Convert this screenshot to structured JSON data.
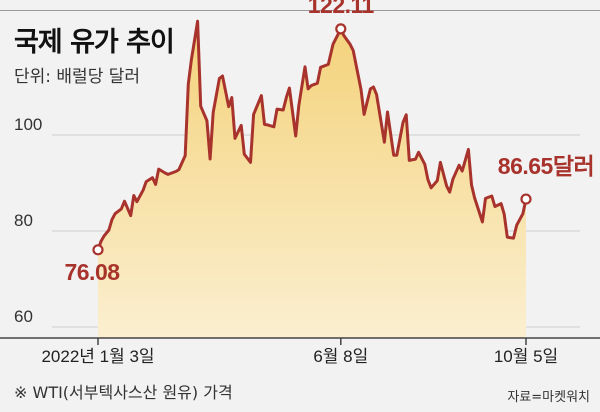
{
  "chart_data": {
    "type": "area",
    "title": "국제 유가 추이",
    "unit_label": "단위: 배럴당 달러",
    "ylim": [
      60,
      125
    ],
    "yticks": [
      60,
      80,
      100
    ],
    "x_tick_labels": [
      {
        "date": "2022-01-03",
        "label": "2022년 1월 3일"
      },
      {
        "date": "2022-06-08",
        "label": "6월 8일"
      },
      {
        "date": "2022-10-05",
        "label": "10월 5일"
      }
    ],
    "series": [
      {
        "name": "WTI",
        "x": [
          "2022-01-03",
          "2022-01-05",
          "2022-01-07",
          "2022-01-10",
          "2022-01-12",
          "2022-01-14",
          "2022-01-18",
          "2022-01-20",
          "2022-01-24",
          "2022-01-26",
          "2022-01-28",
          "2022-02-01",
          "2022-02-03",
          "2022-02-07",
          "2022-02-09",
          "2022-02-11",
          "2022-02-15",
          "2022-02-17",
          "2022-02-22",
          "2022-02-24",
          "2022-02-28",
          "2022-03-02",
          "2022-03-04",
          "2022-03-08",
          "2022-03-10",
          "2022-03-14",
          "2022-03-16",
          "2022-03-18",
          "2022-03-22",
          "2022-03-24",
          "2022-03-28",
          "2022-03-30",
          "2022-04-01",
          "2022-04-05",
          "2022-04-07",
          "2022-04-11",
          "2022-04-13",
          "2022-04-18",
          "2022-04-20",
          "2022-04-22",
          "2022-04-26",
          "2022-04-28",
          "2022-05-02",
          "2022-05-04",
          "2022-05-06",
          "2022-05-10",
          "2022-05-12",
          "2022-05-16",
          "2022-05-18",
          "2022-05-20",
          "2022-05-24",
          "2022-05-26",
          "2022-05-31",
          "2022-06-03",
          "2022-06-08",
          "2022-06-10",
          "2022-06-14",
          "2022-06-16",
          "2022-06-21",
          "2022-06-23",
          "2022-06-27",
          "2022-06-29",
          "2022-07-01",
          "2022-07-06",
          "2022-07-08",
          "2022-07-12",
          "2022-07-14",
          "2022-07-18",
          "2022-07-20",
          "2022-07-22",
          "2022-07-26",
          "2022-07-28",
          "2022-08-01",
          "2022-08-03",
          "2022-08-05",
          "2022-08-09",
          "2022-08-11",
          "2022-08-15",
          "2022-08-17",
          "2022-08-19",
          "2022-08-23",
          "2022-08-25",
          "2022-08-29",
          "2022-08-31",
          "2022-09-02",
          "2022-09-07",
          "2022-09-09",
          "2022-09-13",
          "2022-09-15",
          "2022-09-19",
          "2022-09-21",
          "2022-09-23",
          "2022-09-27",
          "2022-09-29",
          "2022-10-03",
          "2022-10-05"
        ],
        "values": [
          76.08,
          77.9,
          79.0,
          80.2,
          82.4,
          83.6,
          84.6,
          86.2,
          83.2,
          87.4,
          86.1,
          88.5,
          90.3,
          91.1,
          89.7,
          92.9,
          92.1,
          91.8,
          92.4,
          92.8,
          95.7,
          110.6,
          115.7,
          123.7,
          106.0,
          103.0,
          95.0,
          104.7,
          111.8,
          112.3,
          105.9,
          107.8,
          99.3,
          102.0,
          96.0,
          94.3,
          104.3,
          108.2,
          102.2,
          102.1,
          101.7,
          105.4,
          105.2,
          107.8,
          109.8,
          99.8,
          106.1,
          114.2,
          109.6,
          110.3,
          110.8,
          114.1,
          114.7,
          118.9,
          122.11,
          120.7,
          118.9,
          117.6,
          109.5,
          104.3,
          109.6,
          110.0,
          108.4,
          98.5,
          104.8,
          95.8,
          95.8,
          102.6,
          104.2,
          94.7,
          94.98,
          96.4,
          93.9,
          90.7,
          89.0,
          90.5,
          94.3,
          89.4,
          88.1,
          90.8,
          93.7,
          92.5,
          97.0,
          89.6,
          86.9,
          81.9,
          86.8,
          87.3,
          85.1,
          85.7,
          83.5,
          78.7,
          78.5,
          81.2,
          83.6,
          86.65
        ]
      }
    ],
    "annotations": [
      {
        "text": "76.08",
        "date": "2022-01-03",
        "value": 76.08
      },
      {
        "text": "122.11",
        "date": "2022-06-08",
        "value": 122.11
      },
      {
        "text": "86.65달러",
        "date": "2022-10-05",
        "value": 86.65
      }
    ],
    "colors": {
      "line": "#a8332c",
      "area_top": "#f4d27a",
      "area_bottom": "#fbefd0",
      "grid": "#cfcfcf"
    }
  },
  "footnote": "※ WTI(서부텍사스산 원유) 가격",
  "source": "자료=마켓워치"
}
